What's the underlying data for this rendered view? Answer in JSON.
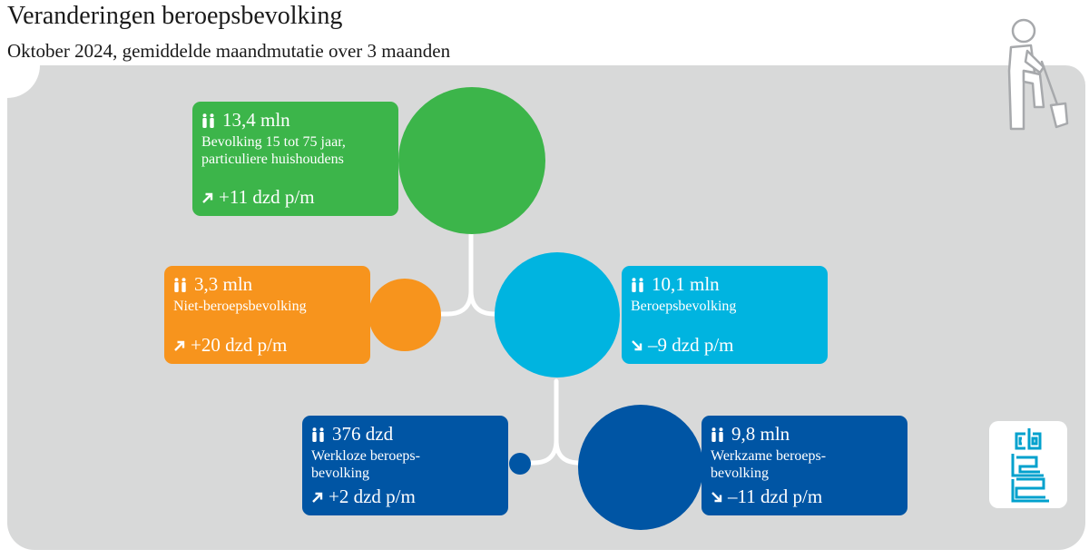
{
  "title": "Veranderingen beroepsbevolking",
  "subtitle": "Oktober 2024, gemiddelde maandmutatie over 3 maanden",
  "colors": {
    "total": "#3cb54a",
    "inactive": "#f7941d",
    "labour_force": "#00b4e0",
    "unemployed": "#0055a4",
    "employed": "#0055a4",
    "background_panel": "#d8d9d9"
  },
  "nodes": [
    {
      "key": "total",
      "value": "13,4 mln",
      "label": "Bevolking 15 tot 75 jaar, particuliere huishoudens",
      "change": "+11 dzd p/m",
      "direction": "up"
    },
    {
      "key": "inactive",
      "value": "3,3 mln",
      "label": "Niet-beroepsbevolking",
      "change": "+20 dzd p/m",
      "direction": "up"
    },
    {
      "key": "labour_force",
      "value": "10,1 mln",
      "label": "Beroepsbevolking",
      "change": "–9 dzd p/m",
      "direction": "down"
    },
    {
      "key": "unemployed",
      "value": "376 dzd",
      "label": "Werkloze beroeps- bevolking",
      "change": "+2 dzd p/m",
      "direction": "up"
    },
    {
      "key": "employed",
      "value": "9,8 mln",
      "label": "Werkzame beroeps- bevolking",
      "change": "–11 dzd p/m",
      "direction": "down"
    }
  ],
  "icons": {
    "people": "people-icon",
    "arrow_up": "arrow-up-right-icon",
    "arrow_down": "arrow-down-right-icon",
    "worker": "worker-shovel-icon",
    "logo": "cbs-logo"
  }
}
